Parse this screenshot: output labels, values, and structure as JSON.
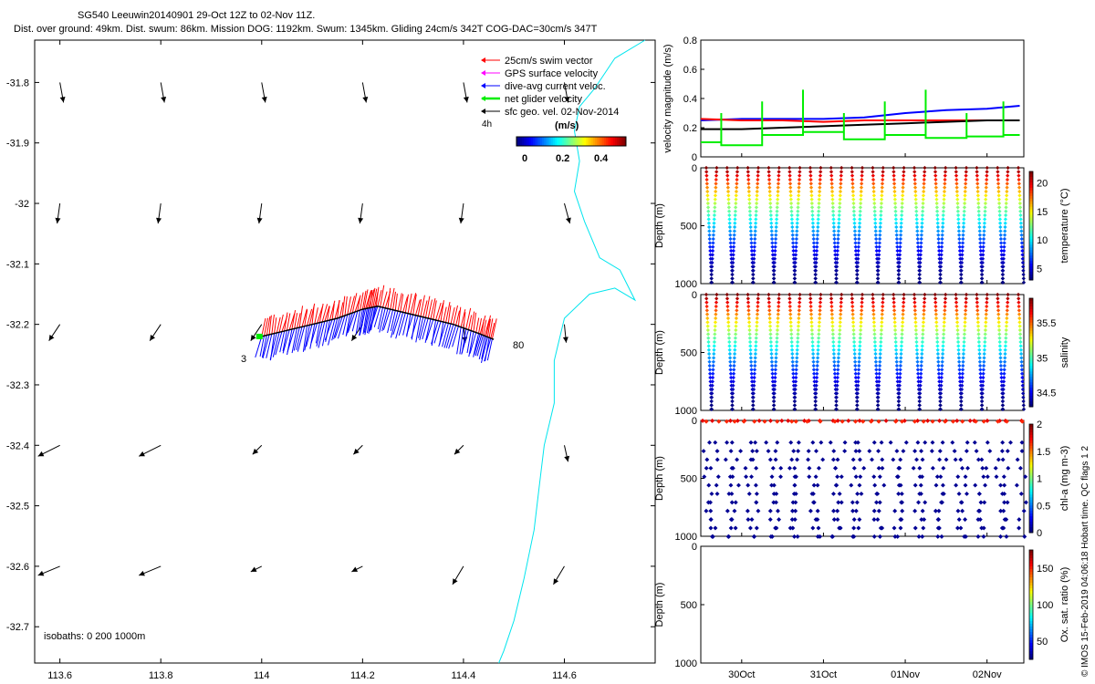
{
  "header": {
    "title": "SG540 Leeuwin20140901 29-Oct 12Z to 02-Nov 11Z.",
    "subtitle": "Dist. over ground: 49km. Dist. swum: 86km. Mission DOG: 1192km. Swum: 1345km. Gliding 24cm/s 342T COG-DAC=30cm/s 347T"
  },
  "map": {
    "legend": {
      "items": [
        {
          "label": "25cm/s swim vector",
          "color": "#ff0000"
        },
        {
          "label": "GPS surface velocity",
          "color": "#ff00ff"
        },
        {
          "label": "dive-avg current veloc.",
          "color": "#0000ff"
        },
        {
          "label": "net glider velocity",
          "color": "#00ee00"
        },
        {
          "label": "sfc geo. vel. 02-Nov-2014",
          "color": "#000000"
        }
      ],
      "time_label": "4h",
      "colorbar_title": "(m/s)",
      "colorbar_ticks": [
        "0",
        "0.2",
        "0.4"
      ]
    },
    "isobaths_label": "isobaths: 0   200  1000m",
    "start_label": "3",
    "end_label": "80"
  },
  "copyright": "© IMOS 15-Feb-2019 04:06:18 Hobart time. QC flags 1  2",
  "chart_data": [
    {
      "type": "scatter",
      "name": "map",
      "x_ticks": [
        "113.6",
        "113.8",
        "114",
        "114.2",
        "114.4",
        "114.6"
      ],
      "y_ticks": [
        "-31.8",
        "-31.9",
        "-32",
        "-32.1",
        "-32.2",
        "-32.3",
        "-32.4",
        "-32.5",
        "-32.6",
        "-32.7"
      ],
      "xlim": [
        113.55,
        114.78
      ],
      "ylim": [
        -32.76,
        -31.73
      ],
      "track": [
        [
          114.0,
          -32.22
        ],
        [
          114.05,
          -32.21
        ],
        [
          114.1,
          -32.2
        ],
        [
          114.15,
          -32.19
        ],
        [
          114.2,
          -32.175
        ],
        [
          114.23,
          -32.17
        ],
        [
          114.28,
          -32.18
        ],
        [
          114.33,
          -32.19
        ],
        [
          114.38,
          -32.2
        ],
        [
          114.43,
          -32.215
        ],
        [
          114.46,
          -32.225
        ]
      ],
      "geo_vel_lon": [
        113.6,
        113.8,
        114.0,
        114.2,
        114.4,
        114.6
      ],
      "geo_vel_lat": [
        -31.8,
        -32.0,
        -32.2,
        -32.4,
        -32.6
      ],
      "coastline": [
        [
          114.76,
          -31.73
        ],
        [
          114.7,
          -31.76
        ],
        [
          114.66,
          -31.81
        ],
        [
          114.63,
          -31.84
        ],
        [
          114.62,
          -31.88
        ],
        [
          114.63,
          -31.93
        ],
        [
          114.62,
          -31.98
        ],
        [
          114.64,
          -32.03
        ],
        [
          114.67,
          -32.09
        ],
        [
          114.71,
          -32.11
        ],
        [
          114.74,
          -32.16
        ],
        [
          114.7,
          -32.14
        ],
        [
          114.65,
          -32.15
        ],
        [
          114.6,
          -32.19
        ],
        [
          114.58,
          -32.26
        ],
        [
          114.58,
          -32.33
        ],
        [
          114.56,
          -32.4
        ],
        [
          114.55,
          -32.47
        ],
        [
          114.54,
          -32.54
        ],
        [
          114.52,
          -32.62
        ],
        [
          114.5,
          -32.69
        ],
        [
          114.48,
          -32.74
        ],
        [
          114.47,
          -32.76
        ]
      ]
    },
    {
      "type": "line",
      "name": "velocity",
      "ylabel": "velocity magnitude (m/s)",
      "ylim": [
        0,
        0.8
      ],
      "y_ticks": [
        "0",
        "0.2",
        "0.4",
        "0.6",
        "0.8"
      ],
      "x_days": [
        29.5,
        30.0,
        30.5,
        31.0,
        31.5,
        32.0,
        32.5,
        33.0,
        33.4
      ],
      "series": [
        {
          "color": "#0000ff",
          "values": [
            0.25,
            0.26,
            0.26,
            0.26,
            0.27,
            0.3,
            0.32,
            0.33,
            0.35
          ]
        },
        {
          "color": "#ff0000",
          "values": [
            0.26,
            0.25,
            0.25,
            0.24,
            0.25,
            0.25,
            0.25,
            0.25,
            0.25
          ]
        },
        {
          "color": "#000000",
          "values": [
            0.19,
            0.19,
            0.2,
            0.21,
            0.22,
            0.23,
            0.24,
            0.25,
            0.25
          ]
        },
        {
          "color": "#00ee00",
          "values": [
            0.1,
            0.08,
            0.15,
            0.17,
            0.12,
            0.15,
            0.13,
            0.14,
            0.15
          ]
        }
      ]
    },
    {
      "type": "scatter",
      "name": "temperature",
      "ylabel": "Depth (m)",
      "colorbar_label": "temperature (°C)",
      "ylim": [
        1000,
        0
      ],
      "cbar_ticks": [
        "20",
        "15",
        "10",
        "5"
      ],
      "cbar_range": [
        3,
        22
      ]
    },
    {
      "type": "scatter",
      "name": "salinity",
      "ylabel": "Depth (m)",
      "colorbar_label": "salinity",
      "ylim": [
        1000,
        0
      ],
      "cbar_ticks": [
        "35.5",
        "35",
        "34.5"
      ],
      "cbar_range": [
        34.3,
        35.85
      ]
    },
    {
      "type": "scatter",
      "name": "chl",
      "ylabel": "Depth (m)",
      "colorbar_label": "chl-a (mg m-3)",
      "ylim": [
        1000,
        0
      ],
      "cbar_ticks": [
        "2",
        "1.5",
        "1",
        "0.5",
        "0"
      ],
      "cbar_range": [
        0,
        2
      ]
    },
    {
      "type": "scatter",
      "name": "oxygen",
      "ylabel": "Depth (m)",
      "colorbar_label": "Ox. sat. ratio (%)",
      "ylim": [
        1000,
        0
      ],
      "cbar_ticks": [
        "150",
        "100",
        "50"
      ],
      "cbar_range": [
        25,
        175
      ]
    }
  ],
  "time_axis": {
    "ticks": [
      "30Oct",
      "31Oct",
      "01Nov",
      "02Nov"
    ],
    "tick_days": [
      30,
      31,
      32,
      33
    ],
    "xlim": [
      29.5,
      33.45
    ]
  },
  "depth_ticks": [
    "0",
    "500",
    "1000"
  ]
}
